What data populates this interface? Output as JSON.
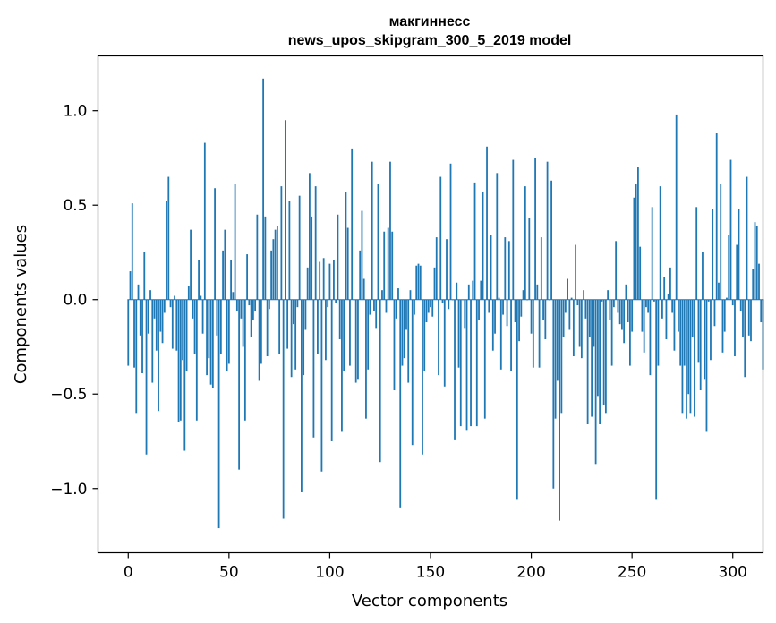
{
  "chart_data": {
    "type": "bar",
    "title": "макгиннесс",
    "subtitle": "news_upos_skipgram_300_5_2019 model",
    "xlabel": "Vector components",
    "ylabel": "Components values",
    "xlim": [
      -15,
      315
    ],
    "ylim": [
      -1.34,
      1.29
    ],
    "xticks": [
      0,
      50,
      100,
      150,
      200,
      250,
      300
    ],
    "xtick_labels": [
      "0",
      "50",
      "100",
      "150",
      "200",
      "250",
      "300"
    ],
    "yticks": [
      -1.0,
      -0.5,
      0.0,
      0.5,
      1.0
    ],
    "ytick_labels": [
      "−1.0",
      "−0.5",
      "0.0",
      "0.5",
      "1.0"
    ],
    "grid": false,
    "bar_color": "#1f77b4",
    "values": [
      -0.35,
      0.15,
      0.51,
      -0.36,
      -0.6,
      0.08,
      -0.19,
      -0.39,
      0.25,
      -0.82,
      -0.18,
      0.05,
      -0.44,
      -0.1,
      -0.27,
      -0.59,
      -0.17,
      -0.23,
      -0.07,
      0.52,
      0.65,
      -0.04,
      -0.26,
      0.02,
      -0.27,
      -0.65,
      -0.64,
      -0.32,
      -0.8,
      -0.38,
      0.07,
      0.37,
      -0.1,
      -0.29,
      -0.64,
      0.21,
      0.02,
      -0.18,
      0.83,
      -0.4,
      -0.31,
      -0.45,
      -0.47,
      0.59,
      -0.19,
      -1.21,
      -0.29,
      0.26,
      0.37,
      -0.38,
      -0.34,
      0.21,
      0.04,
      0.61,
      -0.06,
      -0.9,
      -0.1,
      -0.25,
      -0.64,
      0.24,
      -0.03,
      -0.2,
      -0.11,
      -0.06,
      0.45,
      -0.43,
      -0.34,
      1.17,
      0.44,
      -0.3,
      -0.05,
      0.26,
      0.32,
      0.37,
      0.39,
      -0.29,
      0.6,
      -1.16,
      0.95,
      -0.26,
      0.52,
      -0.41,
      -0.13,
      -0.37,
      -0.04,
      0.55,
      -1.02,
      -0.4,
      -0.16,
      0.17,
      0.67,
      0.44,
      -0.73,
      0.6,
      -0.29,
      0.2,
      -0.91,
      0.22,
      -0.32,
      -0.04,
      0.19,
      -0.75,
      0.21,
      -0.02,
      0.45,
      -0.21,
      -0.7,
      -0.38,
      0.57,
      0.38,
      -0.35,
      0.8,
      0.0,
      -0.44,
      -0.42,
      0.26,
      0.47,
      0.11,
      -0.63,
      -0.37,
      -0.08,
      0.73,
      -0.06,
      -0.15,
      0.61,
      -0.86,
      0.05,
      0.36,
      -0.07,
      0.38,
      0.73,
      0.36,
      -0.48,
      -0.1,
      0.06,
      -1.1,
      -0.35,
      -0.31,
      -0.16,
      -0.44,
      0.05,
      -0.77,
      -0.08,
      0.18,
      0.19,
      0.18,
      -0.82,
      -0.38,
      -0.12,
      -0.07,
      -0.04,
      -0.09,
      0.17,
      0.33,
      -0.4,
      0.65,
      -0.02,
      -0.46,
      0.32,
      -0.05,
      0.72,
      0.0,
      -0.74,
      0.09,
      -0.36,
      -0.67,
      0.0,
      -0.15,
      -0.69,
      0.08,
      -0.67,
      0.1,
      0.62,
      -0.67,
      -0.11,
      0.1,
      0.57,
      -0.63,
      0.81,
      -0.07,
      0.34,
      -0.27,
      -0.18,
      0.67,
      0.01,
      -0.37,
      -0.08,
      0.33,
      -0.14,
      0.31,
      -0.38,
      0.74,
      -0.12,
      -1.06,
      -0.22,
      -0.09,
      0.05,
      0.6,
      0.0,
      0.43,
      -0.18,
      -0.36,
      0.75,
      0.08,
      -0.36,
      0.33,
      -0.11,
      -0.21,
      0.73,
      0.0,
      0.63,
      -1.0,
      -0.63,
      -0.43,
      -1.17,
      -0.6,
      -0.2,
      -0.07,
      0.11,
      -0.16,
      0.01,
      -0.3,
      0.29,
      -0.03,
      -0.25,
      -0.31,
      0.05,
      -0.1,
      -0.66,
      -0.2,
      -0.62,
      -0.25,
      -0.87,
      -0.51,
      -0.66,
      -0.01,
      -0.56,
      -0.6,
      0.05,
      -0.11,
      -0.35,
      -0.04,
      0.31,
      -0.07,
      -0.13,
      -0.16,
      -0.23,
      0.08,
      -0.12,
      -0.35,
      -0.17,
      0.54,
      0.61,
      0.7,
      0.28,
      -0.17,
      -0.28,
      -0.04,
      -0.07,
      -0.4,
      0.49,
      -0.01,
      -1.06,
      -0.35,
      0.6,
      -0.1,
      0.12,
      -0.21,
      0.03,
      0.17,
      -0.07,
      -0.27,
      0.98,
      -0.17,
      -0.35,
      -0.6,
      -0.35,
      -0.63,
      -0.5,
      -0.6,
      -0.2,
      -0.62,
      0.49,
      -0.33,
      -0.48,
      0.25,
      -0.42,
      -0.7,
      -0.01,
      -0.32,
      0.48,
      -0.14,
      0.88,
      0.09,
      0.61,
      -0.28,
      -0.17,
      0.01,
      0.34,
      0.74,
      -0.03,
      -0.3,
      0.29,
      0.48,
      -0.06,
      -0.2,
      -0.41,
      0.65,
      -0.19,
      -0.22,
      0.16,
      0.41,
      0.39,
      0.19,
      -0.12,
      -0.37
    ]
  }
}
